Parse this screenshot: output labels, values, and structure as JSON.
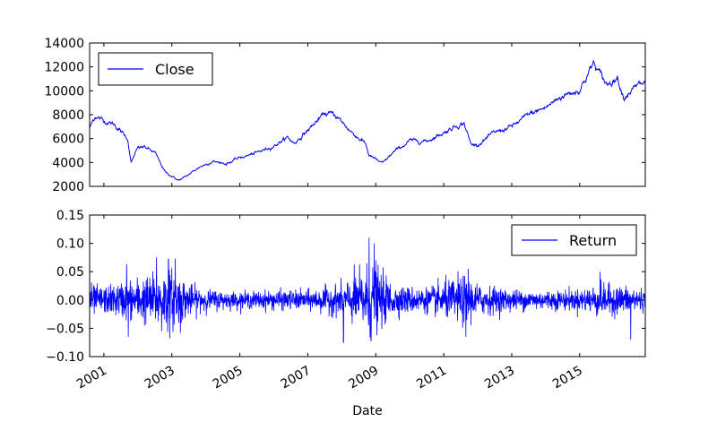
{
  "chart_data": [
    {
      "type": "line",
      "series": [
        {
          "name": "Close",
          "color": "#0000ff"
        }
      ],
      "legend_label": "Close",
      "legend_loc": "upper-left",
      "ylim": [
        2000,
        14000
      ],
      "yticks": [
        2000,
        4000,
        6000,
        8000,
        10000,
        12000,
        14000
      ],
      "ytick_labels": [
        "2000",
        "4000",
        "6000",
        "8000",
        "10000",
        "12000",
        "14000"
      ],
      "xlim": [
        2000.58,
        2016.93
      ],
      "grid": false,
      "anchors": [
        [
          2000.58,
          6900
        ],
        [
          2000.75,
          7900
        ],
        [
          2001.0,
          7500
        ],
        [
          2001.3,
          7200
        ],
        [
          2001.7,
          6000
        ],
        [
          2001.8,
          4000
        ],
        [
          2002.0,
          5200
        ],
        [
          2002.2,
          5300
        ],
        [
          2002.5,
          4800
        ],
        [
          2002.8,
          3200
        ],
        [
          2003.2,
          2500
        ],
        [
          2003.4,
          2800
        ],
        [
          2003.8,
          3600
        ],
        [
          2004.2,
          4100
        ],
        [
          2004.6,
          3900
        ],
        [
          2005.0,
          4400
        ],
        [
          2005.5,
          4800
        ],
        [
          2006.0,
          5400
        ],
        [
          2006.4,
          6100
        ],
        [
          2006.6,
          5600
        ],
        [
          2007.0,
          6700
        ],
        [
          2007.5,
          8100
        ],
        [
          2007.8,
          8000
        ],
        [
          2008.0,
          7400
        ],
        [
          2008.3,
          6500
        ],
        [
          2008.7,
          5600
        ],
        [
          2008.8,
          4600
        ],
        [
          2009.2,
          3900
        ],
        [
          2009.5,
          4800
        ],
        [
          2010.0,
          5800
        ],
        [
          2010.5,
          5800
        ],
        [
          2011.0,
          6500
        ],
        [
          2011.3,
          7000
        ],
        [
          2011.6,
          7300
        ],
        [
          2011.8,
          5500
        ],
        [
          2012.0,
          5500
        ],
        [
          2012.5,
          6500
        ],
        [
          2013.0,
          7000
        ],
        [
          2013.5,
          8000
        ],
        [
          2014.0,
          8600
        ],
        [
          2014.5,
          9600
        ],
        [
          2015.0,
          10100
        ],
        [
          2015.4,
          12300
        ],
        [
          2015.6,
          11400
        ],
        [
          2015.8,
          10500
        ],
        [
          2016.1,
          11200
        ],
        [
          2016.3,
          9500
        ],
        [
          2016.5,
          10000
        ],
        [
          2016.7,
          10400
        ],
        [
          2016.93,
          10700
        ]
      ]
    },
    {
      "type": "line",
      "series": [
        {
          "name": "Return",
          "color": "#0000ff"
        }
      ],
      "legend_label": "Return",
      "legend_loc": "upper-right",
      "ylim": [
        -0.1,
        0.15
      ],
      "yticks": [
        -0.1,
        -0.05,
        0.0,
        0.05,
        0.1,
        0.15
      ],
      "ytick_labels": [
        "−0.10",
        "−0.05",
        "0.00",
        "0.05",
        "0.10",
        "0.15"
      ],
      "xlim": [
        2000.58,
        2016.93
      ],
      "xlabel": "Date",
      "xticks": [
        2001,
        2003,
        2005,
        2007,
        2009,
        2011,
        2013,
        2015
      ],
      "xtick_labels": [
        "2001",
        "2003",
        "2005",
        "2007",
        "2009",
        "2011",
        "2013",
        "2015"
      ],
      "grid": false,
      "volatility": [
        [
          2000.58,
          0.018
        ],
        [
          2001.0,
          0.015
        ],
        [
          2001.7,
          0.022
        ],
        [
          2002.5,
          0.03
        ],
        [
          2003.0,
          0.035
        ],
        [
          2003.5,
          0.018
        ],
        [
          2004.0,
          0.012
        ],
        [
          2005.0,
          0.009
        ],
        [
          2006.0,
          0.011
        ],
        [
          2007.0,
          0.011
        ],
        [
          2008.0,
          0.018
        ],
        [
          2008.8,
          0.04
        ],
        [
          2009.2,
          0.03
        ],
        [
          2009.6,
          0.016
        ],
        [
          2010.5,
          0.014
        ],
        [
          2011.6,
          0.028
        ],
        [
          2012.0,
          0.018
        ],
        [
          2013.0,
          0.012
        ],
        [
          2014.0,
          0.011
        ],
        [
          2015.0,
          0.012
        ],
        [
          2015.5,
          0.018
        ],
        [
          2016.0,
          0.017
        ],
        [
          2016.93,
          0.013
        ]
      ],
      "spikes": [
        [
          2001.67,
          0.063
        ],
        [
          2001.72,
          -0.065
        ],
        [
          2002.55,
          0.075
        ],
        [
          2002.7,
          -0.055
        ],
        [
          2002.9,
          0.072
        ],
        [
          2003.1,
          0.073
        ],
        [
          2003.25,
          -0.058
        ],
        [
          2008.05,
          -0.075
        ],
        [
          2008.8,
          0.11
        ],
        [
          2008.86,
          -0.072
        ],
        [
          2008.95,
          0.1
        ],
        [
          2009.0,
          0.07
        ],
        [
          2011.65,
          -0.065
        ],
        [
          2011.72,
          0.055
        ],
        [
          2015.6,
          0.05
        ],
        [
          2016.5,
          -0.07
        ]
      ]
    }
  ]
}
